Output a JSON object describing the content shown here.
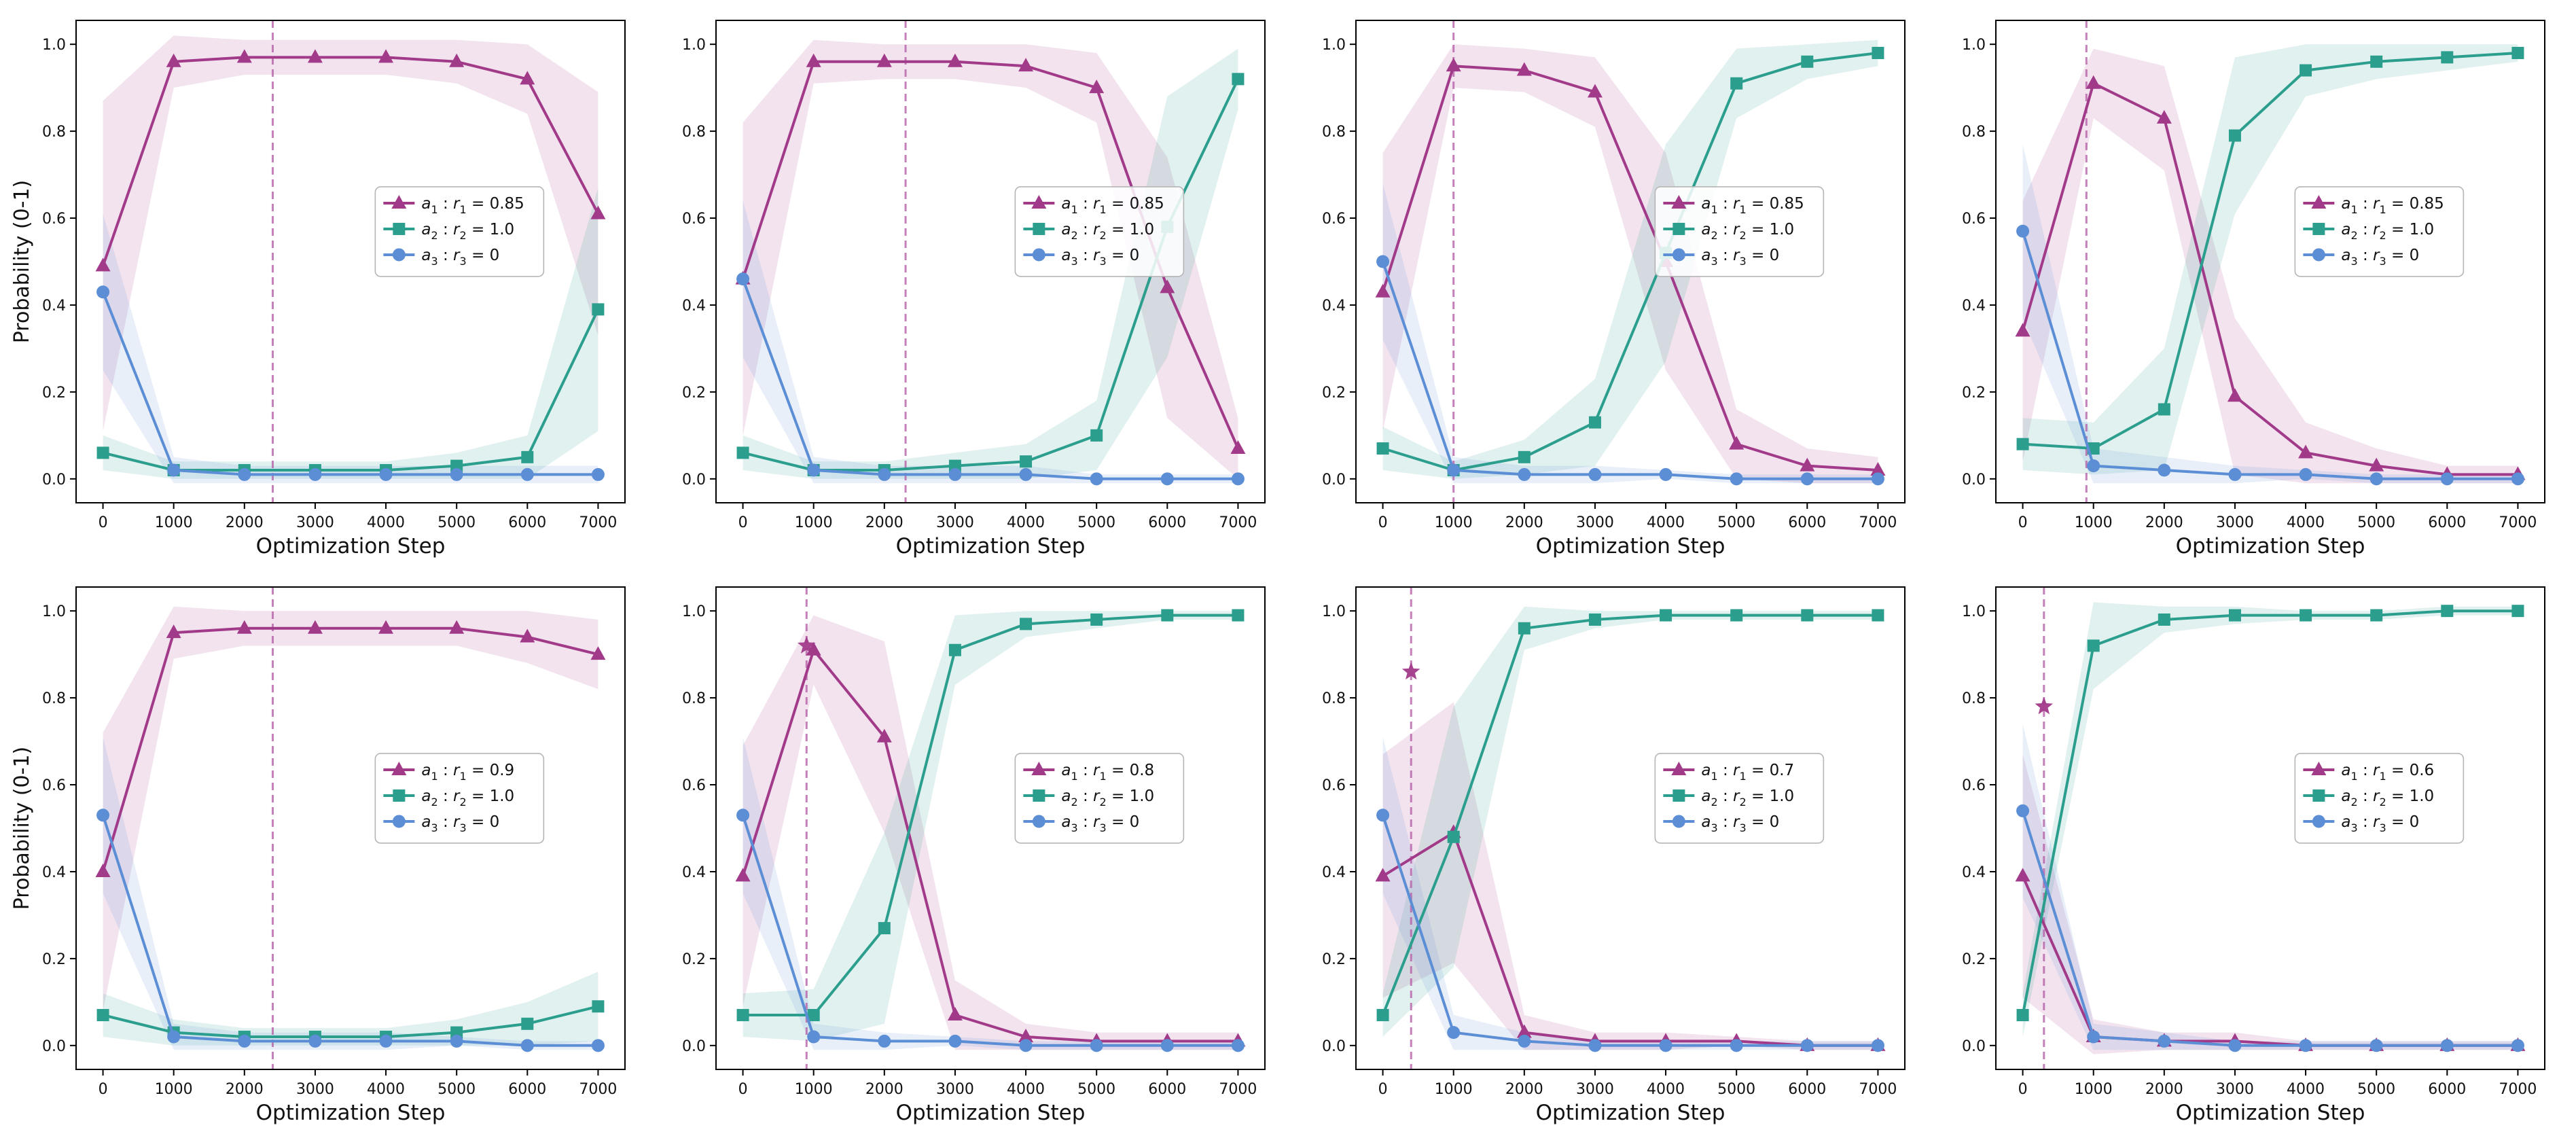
{
  "figure": {
    "xlabel": "Optimization Step",
    "ylabel": "Probability (0-1)",
    "xticks": [
      0,
      1000,
      2000,
      3000,
      4000,
      5000,
      6000,
      7000
    ],
    "xtick_labels": [
      "0",
      "1000",
      "2000",
      "3000",
      "4000",
      "5000",
      "6000",
      "7000"
    ],
    "yticks": [
      0.0,
      0.2,
      0.4,
      0.6,
      0.8,
      1.0
    ],
    "ytick_labels": [
      "0.0",
      "0.2",
      "0.4",
      "0.6",
      "0.8",
      "1.0"
    ],
    "xlim": [
      -380,
      7380
    ],
    "ylim": [
      -0.055,
      1.055
    ],
    "colors": {
      "a1": "#a23a8a",
      "a2": "#2b9e8e",
      "a3": "#5c8ed5",
      "vline": "#b661a8",
      "spine": "#000000"
    },
    "band_opacity": 0.14,
    "grid": false,
    "legend_position": "center-right"
  },
  "chart_data": [
    {
      "type": "line",
      "x": [
        0,
        1000,
        2000,
        3000,
        4000,
        5000,
        6000,
        7000
      ],
      "vline": 2400,
      "star": null,
      "show_ylabel": true,
      "series": [
        {
          "name": "a_1 : r_1 = 0.85",
          "key": "a1",
          "marker": "triangle",
          "values": [
            0.49,
            0.96,
            0.97,
            0.97,
            0.97,
            0.96,
            0.92,
            0.61
          ],
          "spread": [
            0.38,
            0.06,
            0.04,
            0.04,
            0.04,
            0.05,
            0.08,
            0.28
          ]
        },
        {
          "name": "a_2 : r_2 = 1.0",
          "key": "a2",
          "marker": "square",
          "values": [
            0.06,
            0.02,
            0.02,
            0.02,
            0.02,
            0.03,
            0.05,
            0.39
          ],
          "spread": [
            0.04,
            0.02,
            0.02,
            0.02,
            0.02,
            0.03,
            0.05,
            0.28
          ]
        },
        {
          "name": "a_3 : r_3 = 0",
          "key": "a3",
          "marker": "circle",
          "values": [
            0.43,
            0.02,
            0.01,
            0.01,
            0.01,
            0.01,
            0.01,
            0.01
          ],
          "spread": [
            0.18,
            0.03,
            0.02,
            0.02,
            0.02,
            0.02,
            0.02,
            0.02
          ]
        }
      ]
    },
    {
      "type": "line",
      "x": [
        0,
        1000,
        2000,
        3000,
        4000,
        5000,
        6000,
        7000
      ],
      "vline": 2300,
      "star": null,
      "show_ylabel": false,
      "series": [
        {
          "name": "a_1 : r_1 = 0.85",
          "key": "a1",
          "marker": "triangle",
          "values": [
            0.46,
            0.96,
            0.96,
            0.96,
            0.95,
            0.9,
            0.44,
            0.07
          ],
          "spread": [
            0.36,
            0.05,
            0.04,
            0.04,
            0.05,
            0.08,
            0.3,
            0.07
          ]
        },
        {
          "name": "a_2 : r_2 = 1.0",
          "key": "a2",
          "marker": "square",
          "values": [
            0.06,
            0.02,
            0.02,
            0.03,
            0.04,
            0.1,
            0.58,
            0.92
          ],
          "spread": [
            0.04,
            0.02,
            0.02,
            0.03,
            0.04,
            0.08,
            0.3,
            0.07
          ]
        },
        {
          "name": "a_3 : r_3 = 0",
          "key": "a3",
          "marker": "circle",
          "values": [
            0.46,
            0.02,
            0.01,
            0.01,
            0.01,
            0.0,
            0.0,
            0.0
          ],
          "spread": [
            0.18,
            0.03,
            0.02,
            0.02,
            0.02,
            0.01,
            0.01,
            0.01
          ]
        }
      ]
    },
    {
      "type": "line",
      "x": [
        0,
        1000,
        2000,
        3000,
        4000,
        5000,
        6000,
        7000
      ],
      "vline": 1000,
      "star": null,
      "show_ylabel": false,
      "series": [
        {
          "name": "a_1 : r_1 = 0.85",
          "key": "a1",
          "marker": "triangle",
          "values": [
            0.43,
            0.95,
            0.94,
            0.89,
            0.5,
            0.08,
            0.03,
            0.02
          ],
          "spread": [
            0.32,
            0.05,
            0.05,
            0.08,
            0.25,
            0.08,
            0.04,
            0.03
          ]
        },
        {
          "name": "a_2 : r_2 = 1.0",
          "key": "a2",
          "marker": "square",
          "values": [
            0.07,
            0.02,
            0.05,
            0.13,
            0.52,
            0.91,
            0.96,
            0.98
          ],
          "spread": [
            0.05,
            0.02,
            0.04,
            0.1,
            0.25,
            0.08,
            0.04,
            0.03
          ]
        },
        {
          "name": "a_3 : r_3 = 0",
          "key": "a3",
          "marker": "circle",
          "values": [
            0.5,
            0.02,
            0.01,
            0.01,
            0.01,
            0.0,
            0.0,
            0.0
          ],
          "spread": [
            0.18,
            0.03,
            0.02,
            0.02,
            0.01,
            0.01,
            0.01,
            0.01
          ]
        }
      ]
    },
    {
      "type": "line",
      "x": [
        0,
        1000,
        2000,
        3000,
        4000,
        5000,
        6000,
        7000
      ],
      "vline": 900,
      "star": null,
      "show_ylabel": false,
      "series": [
        {
          "name": "a_1 : r_1 = 0.85",
          "key": "a1",
          "marker": "triangle",
          "values": [
            0.34,
            0.91,
            0.83,
            0.19,
            0.06,
            0.03,
            0.01,
            0.01
          ],
          "spread": [
            0.3,
            0.08,
            0.12,
            0.18,
            0.07,
            0.04,
            0.02,
            0.02
          ]
        },
        {
          "name": "a_2 : r_2 = 1.0",
          "key": "a2",
          "marker": "square",
          "values": [
            0.08,
            0.07,
            0.16,
            0.79,
            0.94,
            0.96,
            0.97,
            0.98
          ],
          "spread": [
            0.06,
            0.06,
            0.14,
            0.18,
            0.06,
            0.04,
            0.03,
            0.02
          ]
        },
        {
          "name": "a_3 : r_3 = 0",
          "key": "a3",
          "marker": "circle",
          "values": [
            0.57,
            0.03,
            0.02,
            0.01,
            0.01,
            0.0,
            0.0,
            0.0
          ],
          "spread": [
            0.2,
            0.04,
            0.03,
            0.02,
            0.01,
            0.01,
            0.01,
            0.01
          ]
        }
      ]
    },
    {
      "type": "line",
      "x": [
        0,
        1000,
        2000,
        3000,
        4000,
        5000,
        6000,
        7000
      ],
      "vline": 2400,
      "star": null,
      "show_ylabel": true,
      "series": [
        {
          "name": "a_1 : r_1 = 0.9",
          "key": "a1",
          "marker": "triangle",
          "values": [
            0.4,
            0.95,
            0.96,
            0.96,
            0.96,
            0.96,
            0.94,
            0.9
          ],
          "spread": [
            0.32,
            0.06,
            0.04,
            0.04,
            0.04,
            0.04,
            0.06,
            0.08
          ]
        },
        {
          "name": "a_2 : r_2 = 1.0",
          "key": "a2",
          "marker": "square",
          "values": [
            0.07,
            0.03,
            0.02,
            0.02,
            0.02,
            0.03,
            0.05,
            0.09
          ],
          "spread": [
            0.05,
            0.03,
            0.02,
            0.02,
            0.02,
            0.03,
            0.05,
            0.08
          ]
        },
        {
          "name": "a_3 : r_3 = 0",
          "key": "a3",
          "marker": "circle",
          "values": [
            0.53,
            0.02,
            0.01,
            0.01,
            0.01,
            0.01,
            0.0,
            0.0
          ],
          "spread": [
            0.18,
            0.03,
            0.02,
            0.02,
            0.02,
            0.01,
            0.01,
            0.01
          ]
        }
      ]
    },
    {
      "type": "line",
      "x": [
        0,
        1000,
        2000,
        3000,
        4000,
        5000,
        6000,
        7000
      ],
      "vline": 900,
      "star": {
        "x": 900,
        "y": 0.92
      },
      "show_ylabel": false,
      "series": [
        {
          "name": "a_1 : r_1 = 0.8",
          "key": "a1",
          "marker": "triangle",
          "values": [
            0.39,
            0.91,
            0.71,
            0.07,
            0.02,
            0.01,
            0.01,
            0.01
          ],
          "spread": [
            0.3,
            0.08,
            0.22,
            0.08,
            0.03,
            0.02,
            0.02,
            0.02
          ]
        },
        {
          "name": "a_2 : r_2 = 1.0",
          "key": "a2",
          "marker": "square",
          "values": [
            0.07,
            0.07,
            0.27,
            0.91,
            0.97,
            0.98,
            0.99,
            0.99
          ],
          "spread": [
            0.05,
            0.06,
            0.22,
            0.08,
            0.03,
            0.02,
            0.01,
            0.01
          ]
        },
        {
          "name": "a_3 : r_3 = 0",
          "key": "a3",
          "marker": "circle",
          "values": [
            0.53,
            0.02,
            0.01,
            0.01,
            0.0,
            0.0,
            0.0,
            0.0
          ],
          "spread": [
            0.18,
            0.03,
            0.02,
            0.01,
            0.01,
            0.01,
            0.01,
            0.01
          ]
        }
      ]
    },
    {
      "type": "line",
      "x": [
        0,
        1000,
        2000,
        3000,
        4000,
        5000,
        6000,
        7000
      ],
      "vline": 400,
      "star": {
        "x": 400,
        "y": 0.86
      },
      "show_ylabel": false,
      "series": [
        {
          "name": "a_1 : r_1 = 0.7",
          "key": "a1",
          "marker": "triangle",
          "values": [
            0.39,
            0.49,
            0.03,
            0.01,
            0.01,
            0.01,
            0.0,
            0.0
          ],
          "spread": [
            0.28,
            0.3,
            0.04,
            0.02,
            0.02,
            0.01,
            0.01,
            0.01
          ]
        },
        {
          "name": "a_2 : r_2 = 1.0",
          "key": "a2",
          "marker": "square",
          "values": [
            0.07,
            0.48,
            0.96,
            0.98,
            0.99,
            0.99,
            0.99,
            0.99
          ],
          "spread": [
            0.05,
            0.3,
            0.05,
            0.02,
            0.01,
            0.01,
            0.01,
            0.01
          ]
        },
        {
          "name": "a_3 : r_3 = 0",
          "key": "a3",
          "marker": "circle",
          "values": [
            0.53,
            0.03,
            0.01,
            0.0,
            0.0,
            0.0,
            0.0,
            0.0
          ],
          "spread": [
            0.18,
            0.04,
            0.02,
            0.01,
            0.01,
            0.01,
            0.01,
            0.01
          ]
        }
      ]
    },
    {
      "type": "line",
      "x": [
        0,
        1000,
        2000,
        3000,
        4000,
        5000,
        6000,
        7000
      ],
      "vline": 300,
      "star": {
        "x": 300,
        "y": 0.78
      },
      "show_ylabel": false,
      "series": [
        {
          "name": "a_1 : r_1 = 0.6",
          "key": "a1",
          "marker": "triangle",
          "values": [
            0.39,
            0.02,
            0.01,
            0.01,
            0.0,
            0.0,
            0.0,
            0.0
          ],
          "spread": [
            0.28,
            0.04,
            0.02,
            0.02,
            0.01,
            0.01,
            0.01,
            0.01
          ]
        },
        {
          "name": "a_2 : r_2 = 1.0",
          "key": "a2",
          "marker": "square",
          "values": [
            0.07,
            0.92,
            0.98,
            0.99,
            0.99,
            0.99,
            1.0,
            1.0
          ],
          "spread": [
            0.05,
            0.1,
            0.03,
            0.02,
            0.01,
            0.01,
            0.01,
            0.01
          ]
        },
        {
          "name": "a_3 : r_3 = 0",
          "key": "a3",
          "marker": "circle",
          "values": [
            0.54,
            0.02,
            0.01,
            0.0,
            0.0,
            0.0,
            0.0,
            0.0
          ],
          "spread": [
            0.2,
            0.03,
            0.02,
            0.01,
            0.01,
            0.01,
            0.01,
            0.01
          ]
        }
      ]
    }
  ]
}
